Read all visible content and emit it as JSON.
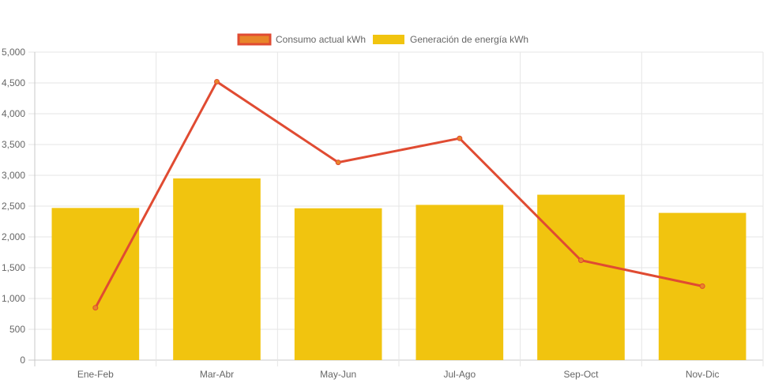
{
  "chart_data": {
    "type": "bar",
    "categories": [
      "Ene-Feb",
      "Mar-Abr",
      "May-Jun",
      "Jul-Ago",
      "Sep-Oct",
      "Nov-Dic"
    ],
    "series": [
      {
        "name": "Consumo actual kWh",
        "type": "line",
        "color": "#e04b32",
        "fill": "#e8852a",
        "values": [
          850,
          4520,
          3210,
          3600,
          1620,
          1200
        ]
      },
      {
        "name": "Generación de energía kWh",
        "type": "bar",
        "color": "#f1c40f",
        "values": [
          2470,
          2950,
          2465,
          2520,
          2685,
          2390
        ]
      }
    ],
    "ylim": [
      0,
      5000
    ],
    "y_ticks": [
      "0",
      "500",
      "1,000",
      "1,500",
      "2,000",
      "2,500",
      "3,000",
      "3,500",
      "4,000",
      "4,500",
      "5,000"
    ],
    "y_tick_values": [
      0,
      500,
      1000,
      1500,
      2000,
      2500,
      3000,
      3500,
      4000,
      4500,
      5000
    ],
    "grid": true,
    "legend_position": "top-center",
    "title": "",
    "xlabel": "",
    "ylabel": ""
  }
}
